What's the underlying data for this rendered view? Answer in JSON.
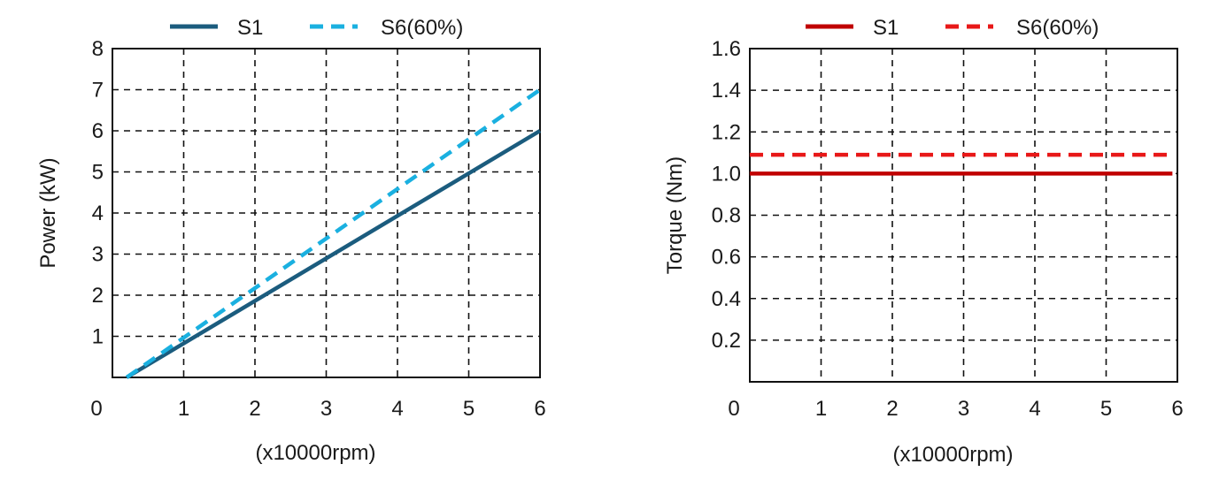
{
  "chart_data": [
    {
      "type": "line",
      "title": "",
      "xlabel": "(x10000rpm)",
      "ylabel": "Power (kW)",
      "xlim": [
        0,
        6
      ],
      "ylim": [
        0,
        8
      ],
      "xticks": [
        "0",
        "1",
        "2",
        "3",
        "4",
        "5",
        "6"
      ],
      "yticks": [
        "1",
        "2",
        "3",
        "4",
        "5",
        "6",
        "7",
        "8"
      ],
      "grid": true,
      "legend_position": "top",
      "series": [
        {
          "name": "S1",
          "color": "#1b5c7e",
          "dash": false,
          "x": [
            0.2,
            6
          ],
          "y": [
            0,
            6
          ]
        },
        {
          "name": "S6(60%)",
          "color": "#1ab0e0",
          "dash": true,
          "x": [
            0.2,
            6
          ],
          "y": [
            0,
            7
          ]
        }
      ]
    },
    {
      "type": "line",
      "title": "",
      "xlabel": "(x10000rpm)",
      "ylabel": "Torque  (Nm)",
      "xlim": [
        0,
        6
      ],
      "ylim": [
        0,
        1.6
      ],
      "xticks": [
        "0",
        "1",
        "2",
        "3",
        "4",
        "5",
        "6"
      ],
      "yticks": [
        "0.2",
        "0.4",
        "0.6",
        "0.8",
        "1.0",
        "1.2",
        "1.4",
        "1.6"
      ],
      "grid": true,
      "legend_position": "top",
      "series": [
        {
          "name": "S1",
          "color": "#c00000",
          "dash": false,
          "x": [
            0,
            5.93
          ],
          "y": [
            1.0,
            1.0
          ]
        },
        {
          "name": "S6(60%)",
          "color": "#e81818",
          "dash": true,
          "x": [
            0,
            5.93
          ],
          "y": [
            1.09,
            1.09
          ]
        }
      ]
    }
  ]
}
